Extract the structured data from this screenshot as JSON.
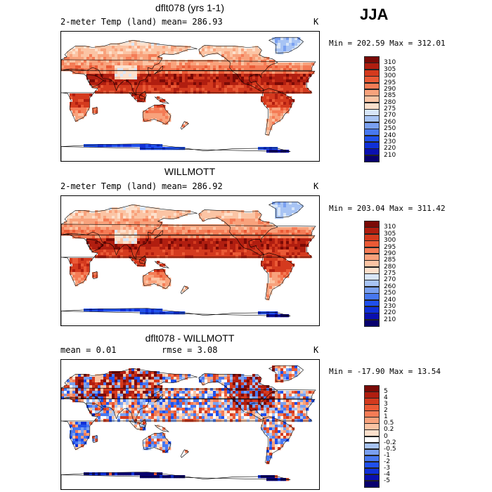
{
  "season": "JJA",
  "panels": [
    {
      "title": "dflt078 (yrs 1-1)",
      "variable": "2-meter Temp (land)",
      "mean_label": "mean= 286.93",
      "units": "K",
      "minmax": "Min = 202.59 Max = 312.01",
      "palette": "warm"
    },
    {
      "title": "WILLMOTT",
      "variable": "2-meter Temp (land)",
      "mean_label": "mean= 286.92",
      "units": "K",
      "minmax": "Min = 203.04 Max = 311.42",
      "palette": "warm"
    },
    {
      "title": "dflt078 - WILLMOTT",
      "mean_label": "mean =    0.01",
      "rmse_label": "rmse =    3.08",
      "units": "K",
      "minmax": "Min = -17.90 Max =  13.54",
      "palette": "diff"
    }
  ],
  "chart_data": [
    {
      "type": "heatmap",
      "title": "dflt078 (yrs 1-1)",
      "subtitle": "2-meter Temp (land)",
      "mean": 286.93,
      "min": 202.59,
      "max": 312.01,
      "units": "K",
      "colorbar_levels": [
        210,
        220,
        230,
        240,
        250,
        260,
        270,
        275,
        280,
        285,
        290,
        295,
        300,
        305,
        310
      ],
      "colorbar_colors": [
        "#08006e",
        "#0a10b0",
        "#1030d8",
        "#2050ec",
        "#4878f0",
        "#7aa0f0",
        "#a8c4f4",
        "#d8e6f8",
        "#fde0cc",
        "#fbc4a4",
        "#f8a27c",
        "#f47c56",
        "#ea5a36",
        "#d43a1e",
        "#b01e10",
        "#7a0a06"
      ]
    },
    {
      "type": "heatmap",
      "title": "WILLMOTT",
      "subtitle": "2-meter Temp (land)",
      "mean": 286.92,
      "min": 203.04,
      "max": 311.42,
      "units": "K",
      "colorbar_levels": [
        210,
        220,
        230,
        240,
        250,
        260,
        270,
        275,
        280,
        285,
        290,
        295,
        300,
        305,
        310
      ],
      "colorbar_colors": [
        "#08006e",
        "#0a10b0",
        "#1030d8",
        "#2050ec",
        "#4878f0",
        "#7aa0f0",
        "#a8c4f4",
        "#d8e6f8",
        "#fde0cc",
        "#fbc4a4",
        "#f8a27c",
        "#f47c56",
        "#ea5a36",
        "#d43a1e",
        "#b01e10",
        "#7a0a06"
      ]
    },
    {
      "type": "heatmap",
      "title": "dflt078 - WILLMOTT",
      "mean": 0.01,
      "rmse": 3.08,
      "min": -17.9,
      "max": 13.54,
      "units": "K",
      "colorbar_levels": [
        "-5",
        "-4",
        "-3",
        "-2",
        "-1",
        "-0.5",
        "-0.2",
        "0",
        "0.2",
        "0.5",
        "1",
        "2",
        "3",
        "4",
        "5"
      ],
      "colorbar_colors": [
        "#08006e",
        "#0a10b0",
        "#1030d8",
        "#2050ec",
        "#4878f0",
        "#7aa0f0",
        "#a8c4f4",
        "#ffffff",
        "#fde0cc",
        "#fbc4a4",
        "#f8a27c",
        "#f47c56",
        "#ea5a36",
        "#d43a1e",
        "#b01e10",
        "#7a0a06"
      ]
    }
  ]
}
